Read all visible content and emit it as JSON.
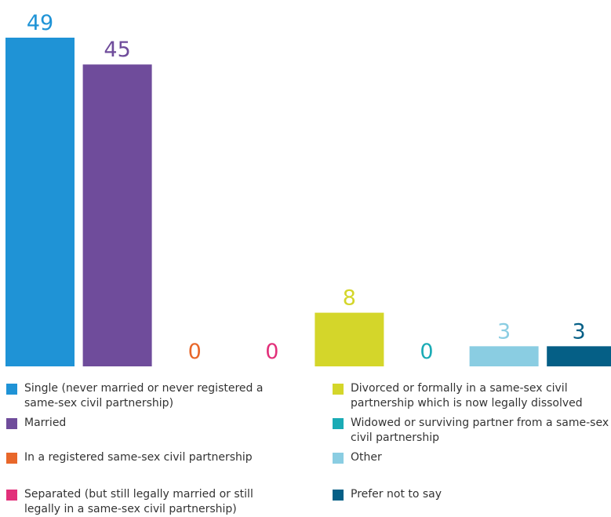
{
  "chart_data": {
    "type": "bar",
    "categories": [
      "Single (never married or never registered a same-sex civil partnership)",
      "Married",
      "In a registered same-sex civil partnership",
      "Separated (but still legally married or still legally in a same-sex civil partnership)",
      "Divorced or formally in a same-sex civil partnership which is now legally dissolved",
      "Widowed or surviving partner from a same-sex civil partnership",
      "Other",
      "Prefer not to say"
    ],
    "values": [
      49,
      45,
      0,
      0,
      8,
      0,
      3,
      3
    ],
    "colors": [
      "#1f93d6",
      "#6f4c9b",
      "#e8672a",
      "#e2307a",
      "#d4d62a",
      "#1aabb5",
      "#8acde2",
      "#055f86"
    ],
    "legend": "bottom"
  }
}
